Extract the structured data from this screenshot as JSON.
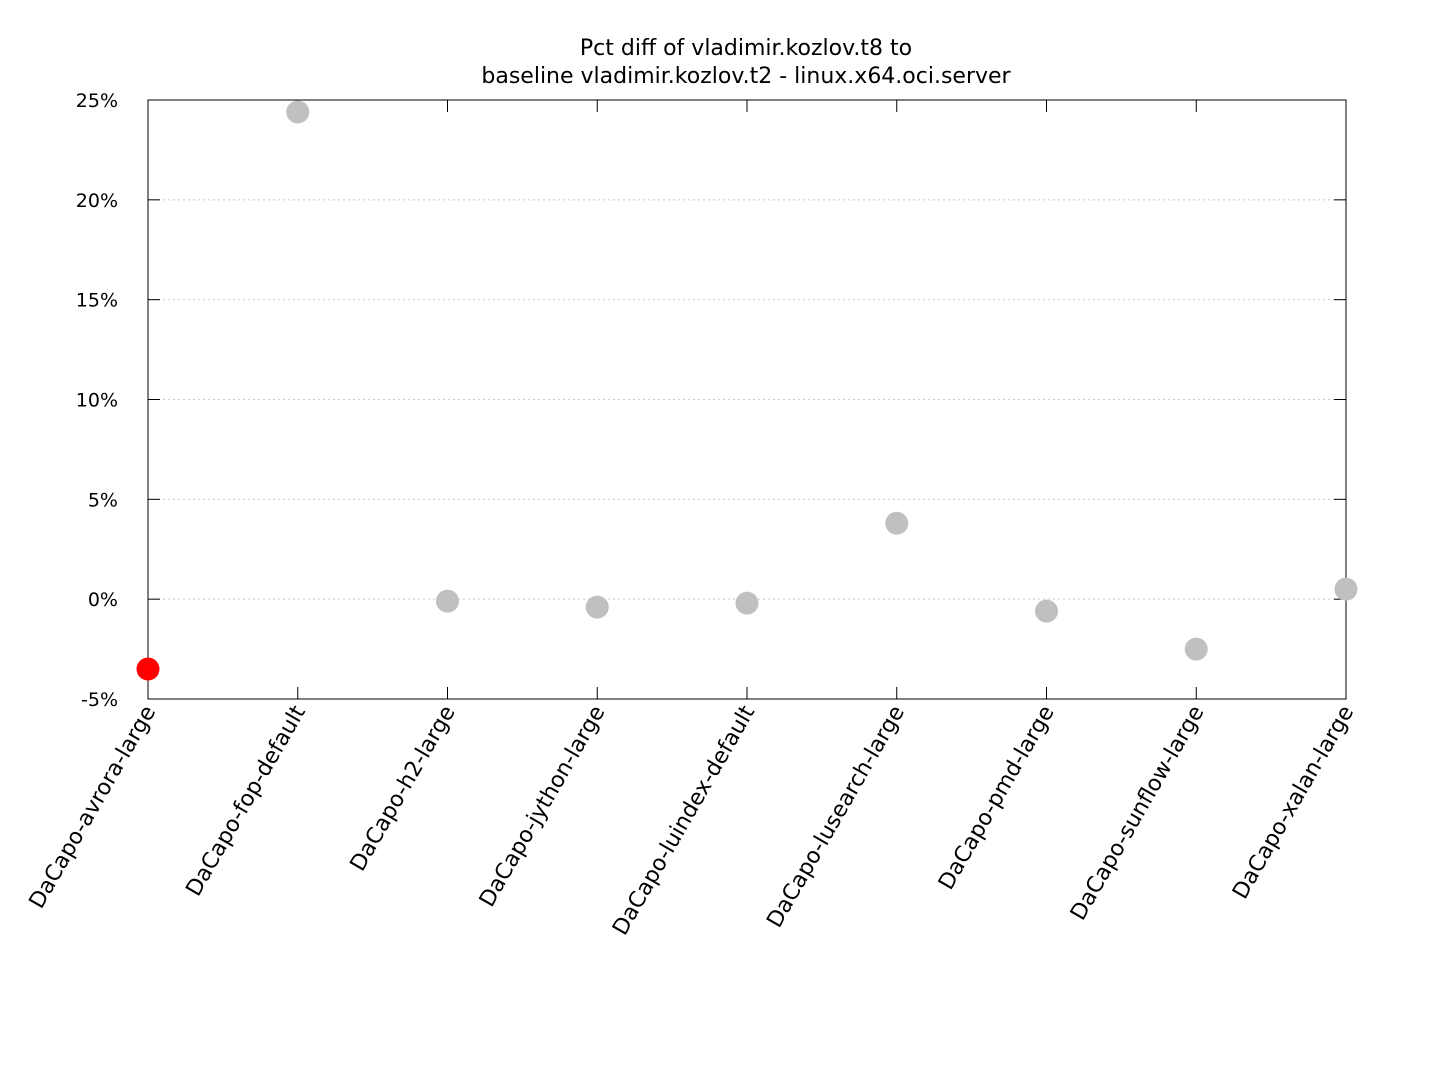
{
  "chart_data": {
    "type": "scatter",
    "title_lines": [
      "Pct diff of vladimir.kozlov.t8 to",
      "baseline vladimir.kozlov.t2 - linux.x64.oci.server"
    ],
    "xlabel": "",
    "ylabel": "",
    "categories": [
      "DaCapo-avrora-large",
      "DaCapo-fop-default",
      "DaCapo-h2-large",
      "DaCapo-jython-large",
      "DaCapo-luindex-default",
      "DaCapo-lusearch-large",
      "DaCapo-pmd-large",
      "DaCapo-sunflow-large",
      "DaCapo-xalan-large"
    ],
    "values": [
      -3.5,
      24.4,
      -0.1,
      -0.4,
      -0.2,
      3.8,
      -0.6,
      -2.5,
      0.5
    ],
    "ylim": [
      -5,
      25
    ],
    "yticks": [
      -5,
      0,
      5,
      10,
      15,
      20,
      25
    ],
    "ytick_labels": [
      "-5%",
      "0%",
      "5%",
      "10%",
      "15%",
      "20%",
      "25%"
    ],
    "grid": true,
    "colors": {
      "normal": "#c0c0c0",
      "highlight": "#ff0000"
    },
    "point_colors": [
      "highlight",
      "normal",
      "normal",
      "normal",
      "normal",
      "normal",
      "normal",
      "normal",
      "normal"
    ]
  }
}
